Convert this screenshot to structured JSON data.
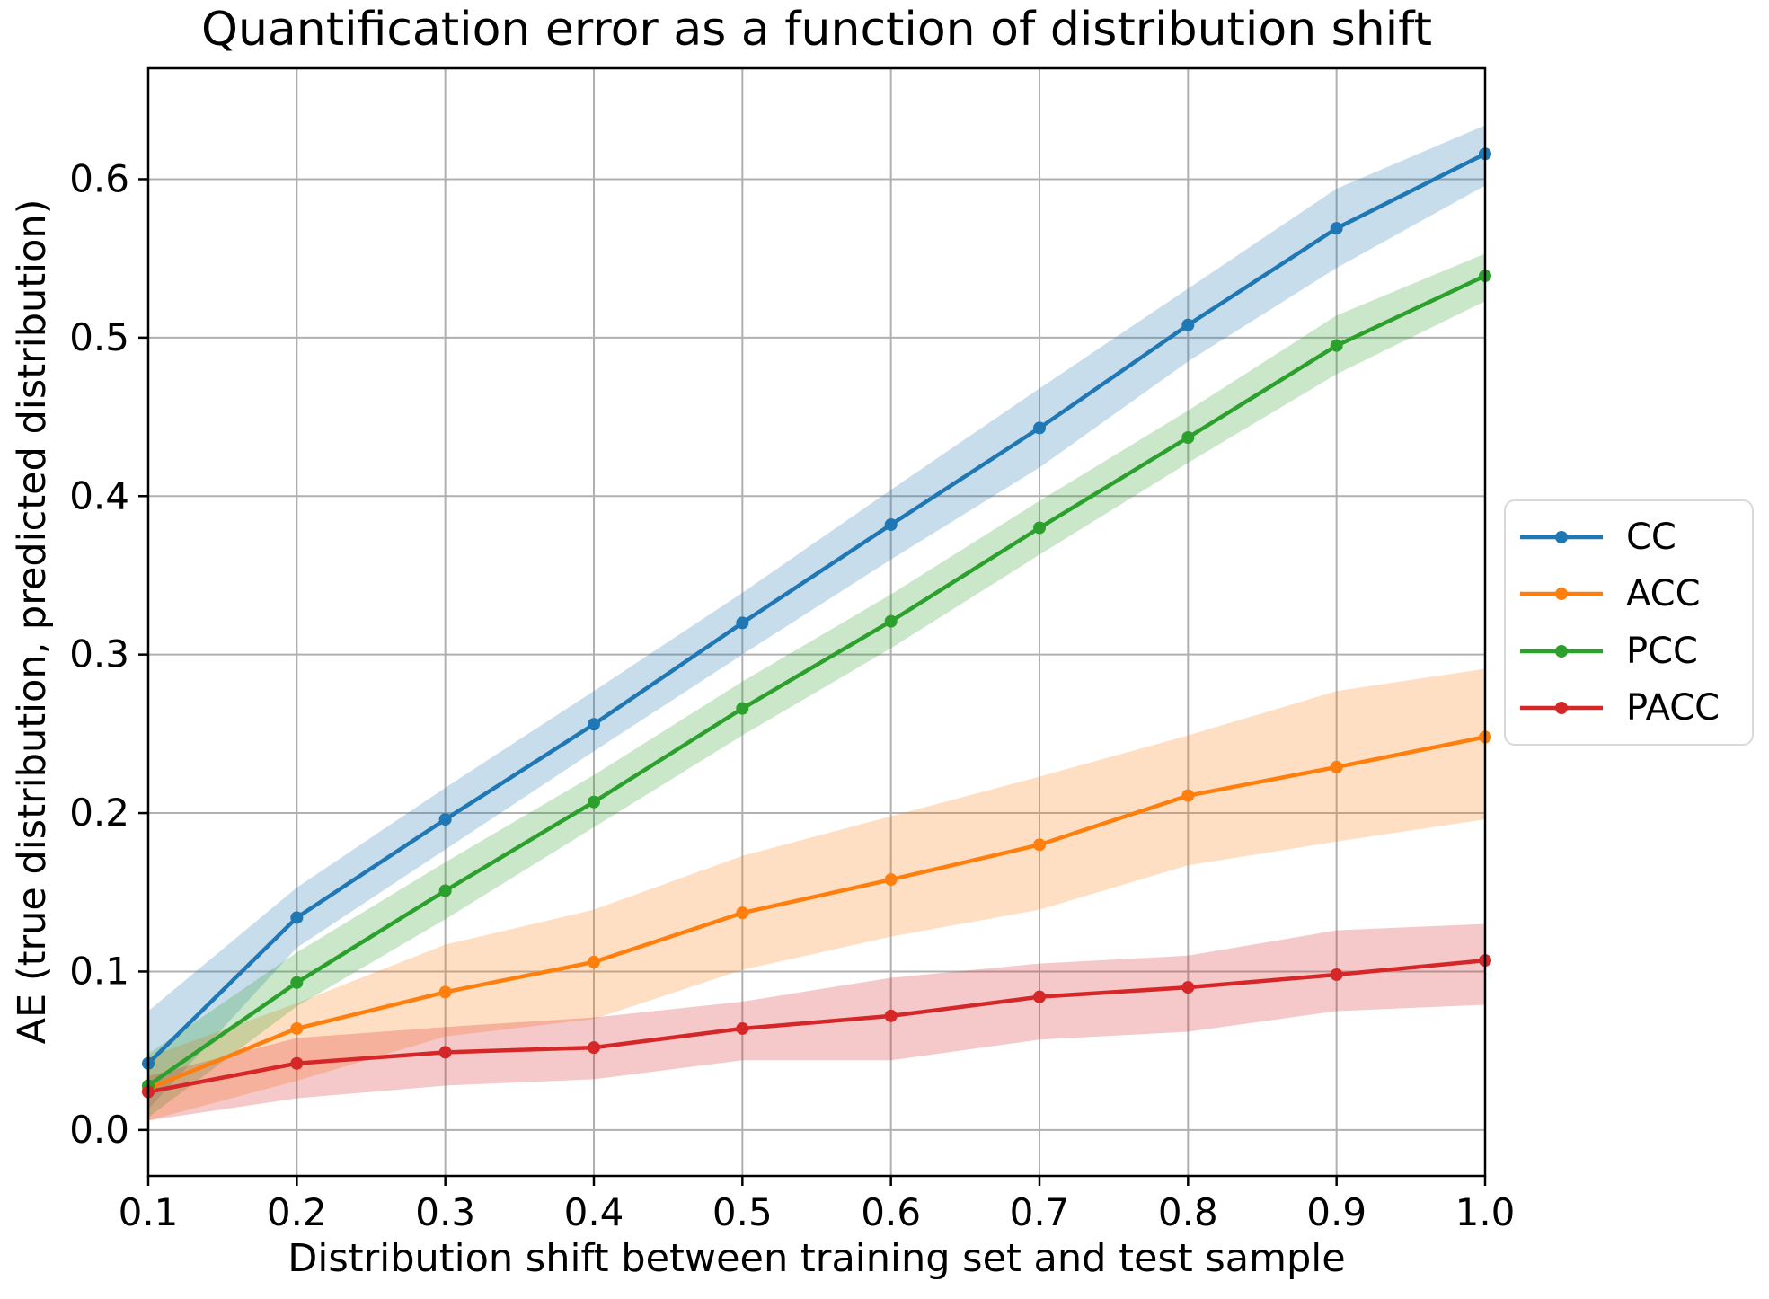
{
  "chart_data": {
    "type": "line",
    "title": "Quantification error as a function of distribution shift",
    "xlabel": "Distribution shift between training set and test sample",
    "ylabel": "AE (true distribution, predicted distribution)",
    "x": [
      0.1,
      0.2,
      0.3,
      0.4,
      0.5,
      0.6,
      0.7,
      0.8,
      0.9,
      1.0
    ],
    "xtick_labels": [
      "0.1",
      "0.2",
      "0.3",
      "0.4",
      "0.5",
      "0.6",
      "0.7",
      "0.8",
      "0.9",
      "1.0"
    ],
    "ytick_values": [
      0.0,
      0.1,
      0.2,
      0.3,
      0.4,
      0.5,
      0.6
    ],
    "ytick_labels": [
      "0.0",
      "0.1",
      "0.2",
      "0.3",
      "0.4",
      "0.5",
      "0.6"
    ],
    "xlim": [
      0.1,
      1.0
    ],
    "ylim": [
      -0.029,
      0.67
    ],
    "grid": true,
    "legend_position": "outside-right",
    "band_opacity": 0.25,
    "series": [
      {
        "name": "CC",
        "color": "#1f77b4",
        "values": [
          0.042,
          0.134,
          0.196,
          0.256,
          0.32,
          0.382,
          0.443,
          0.508,
          0.569,
          0.616
        ],
        "band_lower": [
          0.013,
          0.115,
          0.177,
          0.239,
          0.3,
          0.36,
          0.418,
          0.485,
          0.544,
          0.596
        ],
        "band_upper": [
          0.075,
          0.153,
          0.216,
          0.277,
          0.339,
          0.404,
          0.468,
          0.531,
          0.594,
          0.634
        ]
      },
      {
        "name": "ACC",
        "color": "#ff7f0e",
        "values": [
          0.026,
          0.064,
          0.087,
          0.106,
          0.137,
          0.158,
          0.18,
          0.211,
          0.229,
          0.248
        ],
        "band_lower": [
          0.006,
          0.031,
          0.059,
          0.07,
          0.101,
          0.122,
          0.139,
          0.167,
          0.182,
          0.196
        ],
        "band_upper": [
          0.046,
          0.08,
          0.117,
          0.139,
          0.173,
          0.198,
          0.223,
          0.249,
          0.277,
          0.291
        ]
      },
      {
        "name": "PCC",
        "color": "#2ca02c",
        "values": [
          0.028,
          0.093,
          0.151,
          0.207,
          0.266,
          0.321,
          0.38,
          0.437,
          0.495,
          0.539
        ],
        "band_lower": [
          0.008,
          0.078,
          0.133,
          0.191,
          0.249,
          0.304,
          0.363,
          0.421,
          0.477,
          0.523
        ],
        "band_upper": [
          0.048,
          0.112,
          0.169,
          0.224,
          0.283,
          0.338,
          0.397,
          0.454,
          0.514,
          0.553
        ]
      },
      {
        "name": "PACC",
        "color": "#d62728",
        "values": [
          0.024,
          0.042,
          0.049,
          0.052,
          0.064,
          0.072,
          0.084,
          0.09,
          0.098,
          0.107
        ],
        "band_lower": [
          0.006,
          0.02,
          0.028,
          0.032,
          0.044,
          0.044,
          0.057,
          0.062,
          0.075,
          0.079
        ],
        "band_upper": [
          0.034,
          0.058,
          0.065,
          0.071,
          0.081,
          0.096,
          0.105,
          0.11,
          0.126,
          0.13
        ]
      }
    ]
  },
  "colors": {
    "background": "#ffffff",
    "grid": "#b0b0b0",
    "spine": "#000000",
    "tick": "#000000",
    "text": "#000000",
    "legend_border": "#d9d9d9"
  }
}
